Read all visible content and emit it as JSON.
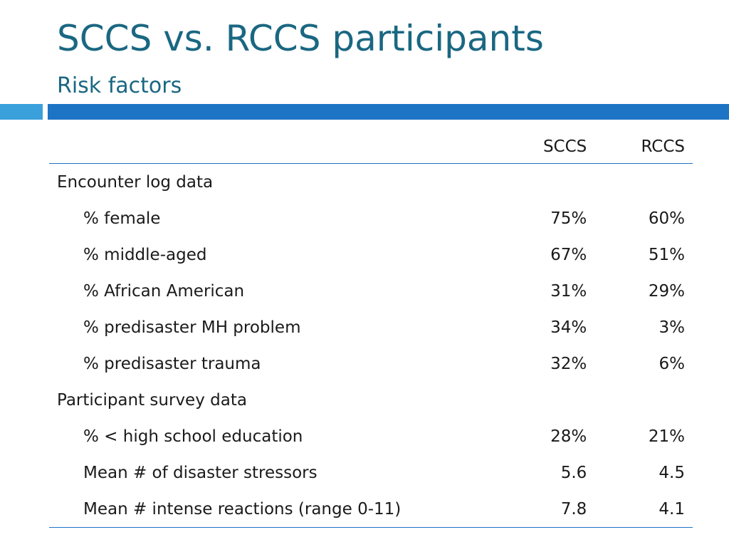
{
  "slide": {
    "title": "SCCS vs. RCCS participants",
    "subtitle": "Risk factors"
  },
  "colors": {
    "title": "#1a6782",
    "accent_light": "#3aa0db",
    "accent_dark": "#1d73c4"
  },
  "table": {
    "headers": [
      "",
      "SCCS",
      "RCCS"
    ],
    "groups": [
      {
        "label": "Encounter log data",
        "rows": [
          {
            "label": "% female",
            "sccs": "75%",
            "rccs": "60%"
          },
          {
            "label": "% middle-aged",
            "sccs": "67%",
            "rccs": "51%"
          },
          {
            "label": "% African American",
            "sccs": "31%",
            "rccs": "29%"
          },
          {
            "label": "% predisaster MH problem",
            "sccs": "34%",
            "rccs": "3%"
          },
          {
            "label": "% predisaster trauma",
            "sccs": "32%",
            "rccs": "6%"
          }
        ]
      },
      {
        "label": "Participant survey data",
        "rows": [
          {
            "label": "% < high school education",
            "sccs": "28%",
            "rccs": "21%"
          },
          {
            "label": "Mean # of disaster stressors",
            "sccs": "5.6",
            "rccs": "4.5"
          },
          {
            "label": "Mean # intense reactions (range 0-11)",
            "sccs": "7.8",
            "rccs": "4.1"
          }
        ]
      }
    ]
  }
}
